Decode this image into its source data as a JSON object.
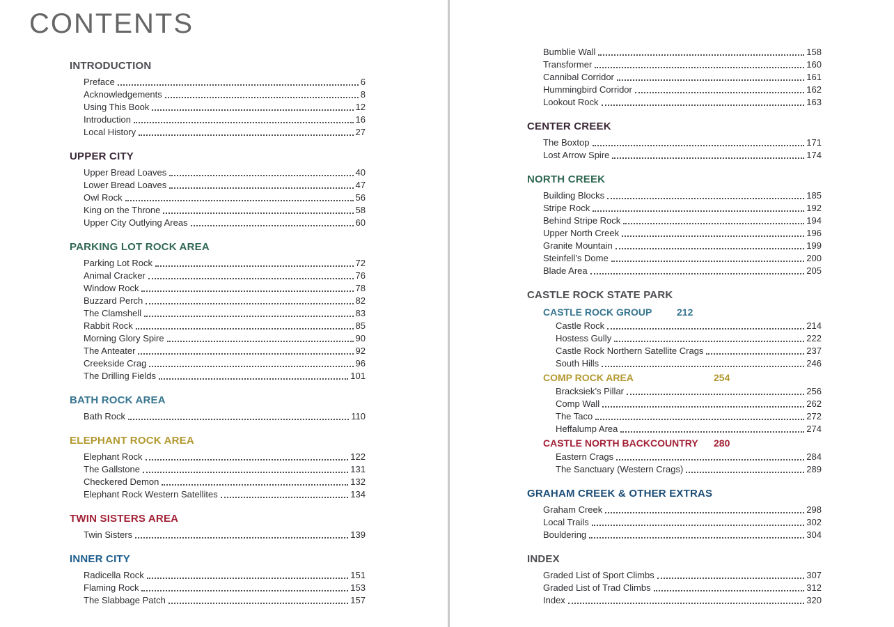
{
  "title": "CONTENTS",
  "colors": {
    "gray": "#4c4c51",
    "plum": "#3c2a38",
    "green": "#2f6852",
    "steel": "#377590",
    "gold": "#b2982f",
    "red": "#a22136",
    "blue": "#1c5d8d",
    "navy": "#1c4d77"
  },
  "pages": {
    "left": [
      {
        "type": "section",
        "label": "INTRODUCTION",
        "color": "gray",
        "items": [
          {
            "t": "Preface",
            "p": 6
          },
          {
            "t": "Acknowledgements",
            "p": 8
          },
          {
            "t": "Using This Book",
            "p": 12
          },
          {
            "t": "Introduction",
            "p": 16
          },
          {
            "t": "Local History",
            "p": 27
          }
        ]
      },
      {
        "type": "section",
        "label": "UPPER CITY",
        "color": "plum",
        "items": [
          {
            "t": "Upper Bread Loaves",
            "p": 40
          },
          {
            "t": "Lower Bread Loaves",
            "p": 47
          },
          {
            "t": "Owl Rock",
            "p": 56
          },
          {
            "t": "King on the Throne",
            "p": 58
          },
          {
            "t": "Upper City Outlying Areas",
            "p": 60
          }
        ]
      },
      {
        "type": "section",
        "label": "PARKING LOT ROCK AREA",
        "color": "green",
        "items": [
          {
            "t": "Parking Lot Rock",
            "p": 72
          },
          {
            "t": "Animal Cracker",
            "p": 76
          },
          {
            "t": "Window Rock",
            "p": 78
          },
          {
            "t": "Buzzard Perch",
            "p": 82
          },
          {
            "t": "The Clamshell",
            "p": 83
          },
          {
            "t": "Rabbit Rock",
            "p": 85
          },
          {
            "t": "Morning Glory Spire",
            "p": 90
          },
          {
            "t": "The Anteater",
            "p": 92
          },
          {
            "t": "Creekside Crag",
            "p": 96
          },
          {
            "t": "The Drilling Fields",
            "p": 101
          }
        ]
      },
      {
        "type": "section",
        "label": "BATH ROCK AREA",
        "color": "steel",
        "items": [
          {
            "t": "Bath Rock",
            "p": 110
          }
        ]
      },
      {
        "type": "section",
        "label": "ELEPHANT ROCK AREA",
        "color": "gold",
        "items": [
          {
            "t": "Elephant Rock",
            "p": 122
          },
          {
            "t": "The Gallstone",
            "p": 131
          },
          {
            "t": "Checkered Demon",
            "p": 132
          },
          {
            "t": "Elephant Rock Western Satellites",
            "p": 134
          }
        ]
      },
      {
        "type": "section",
        "label": "TWIN SISTERS AREA",
        "color": "red",
        "items": [
          {
            "t": "Twin Sisters",
            "p": 139
          }
        ]
      },
      {
        "type": "section",
        "label": "INNER CITY",
        "color": "blue",
        "items": [
          {
            "t": "Radicella Rock",
            "p": 151
          },
          {
            "t": "Flaming Rock",
            "p": 153
          },
          {
            "t": "The Slabbage Patch",
            "p": 157
          }
        ]
      }
    ],
    "right": [
      {
        "type": "items",
        "items": [
          {
            "t": "Bumblie Wall",
            "p": 158
          },
          {
            "t": "Transformer",
            "p": 160
          },
          {
            "t": "Cannibal Corridor",
            "p": 161
          },
          {
            "t": "Hummingbird Corridor",
            "p": 162
          },
          {
            "t": "Lookout Rock",
            "p": 163
          }
        ]
      },
      {
        "type": "section",
        "label": "CENTER CREEK",
        "color": "plum",
        "items": [
          {
            "t": "The Boxtop",
            "p": 171
          },
          {
            "t": "Lost Arrow Spire",
            "p": 174
          }
        ]
      },
      {
        "type": "section",
        "label": "NORTH CREEK",
        "color": "green",
        "items": [
          {
            "t": "Building Blocks",
            "p": 185
          },
          {
            "t": "Stripe Rock",
            "p": 192
          },
          {
            "t": "Behind Stripe Rock",
            "p": 194
          },
          {
            "t": "Upper North Creek",
            "p": 196
          },
          {
            "t": "Granite Mountain",
            "p": 199
          },
          {
            "t": "Steinfell’s Dome",
            "p": 200
          },
          {
            "t": "Blade Area",
            "p": 205
          }
        ]
      },
      {
        "type": "group",
        "label": "CASTLE ROCK STATE PARK",
        "color": "gray",
        "subsections": [
          {
            "label": "CASTLE ROCK GROUP",
            "page": 212,
            "color": "steel",
            "items": [
              {
                "t": "Castle Rock",
                "p": 214
              },
              {
                "t": "Hostess Gully",
                "p": 222
              },
              {
                "t": "Castle Rock Northern Satellite Crags",
                "p": 237
              },
              {
                "t": "South Hills",
                "p": 246
              }
            ]
          },
          {
            "label": "COMP ROCK AREA",
            "page": 254,
            "color": "gold",
            "items": [
              {
                "t": "Bracksiek’s Pillar",
                "p": 256
              },
              {
                "t": "Comp Wall",
                "p": 262
              },
              {
                "t": "The Taco",
                "p": 272
              },
              {
                "t": "Heffalump Area",
                "p": 274
              }
            ]
          },
          {
            "label": "CASTLE NORTH BACKCOUNTRY",
            "page": 280,
            "color": "red",
            "items": [
              {
                "t": "Eastern Crags",
                "p": 284
              },
              {
                "t": "The Sanctuary (Western Crags)",
                "p": 289
              }
            ]
          }
        ]
      },
      {
        "type": "section",
        "label": "GRAHAM CREEK & OTHER EXTRAS",
        "color": "navy",
        "items": [
          {
            "t": "Graham Creek",
            "p": 298
          },
          {
            "t": "Local Trails",
            "p": 302
          },
          {
            "t": "Bouldering",
            "p": 304
          }
        ]
      },
      {
        "type": "section",
        "label": "INDEX",
        "color": "gray",
        "items": [
          {
            "t": "Graded List of Sport Climbs",
            "p": 307
          },
          {
            "t": "Graded List of Trad Climbs",
            "p": 312
          },
          {
            "t": "Index",
            "p": 320
          }
        ]
      }
    ]
  }
}
